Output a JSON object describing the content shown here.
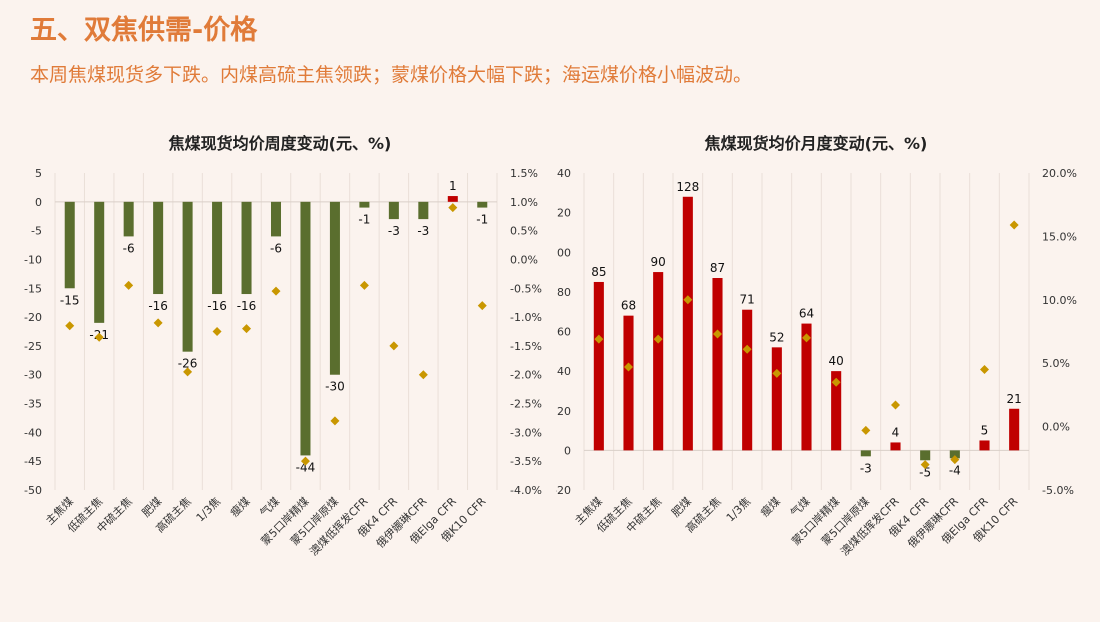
{
  "header": {
    "title": "五、双焦供需-价格",
    "subtitle": "本周焦煤现货多下跌。内煤高硫主焦领跌；蒙煤价格大幅下跌；海运煤价格小幅波动。"
  },
  "colors": {
    "accent": "#e07b39",
    "weekly_bar": "#5a6e2e",
    "monthly_bar": "#c00000",
    "marker": "#c99700",
    "background": "#fbf3ee"
  },
  "chart_data": [
    {
      "type": "bar",
      "title": "焦煤现货均价周度变动(元、%)",
      "categories": [
        "主焦煤",
        "低硫主焦",
        "中硫主焦",
        "肥煤",
        "高硫主焦",
        "1/3焦",
        "瘦煤",
        "气煤",
        "蒙5口岸精煤",
        "蒙5口岸原煤",
        "澳煤低挥发CFR",
        "俄K4 CFR",
        "俄伊娜琳CFR",
        "俄Elga CFR",
        "俄K10 CFR"
      ],
      "series": [
        {
          "axis": "left",
          "values": [
            -15,
            -21,
            -6,
            -16,
            -26,
            -16,
            -16,
            -6,
            -44,
            -30,
            -1,
            -3,
            -3,
            1,
            -1
          ],
          "labels": [
            "-15",
            "-21",
            "-6",
            "-16",
            "-26",
            "-16",
            "-16",
            "-6",
            "-44",
            "-30",
            "-1",
            "-3",
            "-3",
            "1",
            "-1"
          ]
        },
        {
          "axis": "right",
          "type": "scatter",
          "values": [
            -1.15,
            -1.35,
            -0.45,
            -1.1,
            -1.95,
            -1.25,
            -1.2,
            -0.55,
            -3.5,
            -2.8,
            -0.45,
            -1.5,
            -2.0,
            0.9,
            -0.8
          ]
        }
      ],
      "ylim": [
        -50,
        5
      ],
      "yticks": [
        "5",
        "0",
        "-5",
        "-10",
        "-15",
        "-20",
        "-25",
        "-30",
        "-35",
        "-40",
        "-45",
        "-50"
      ],
      "y2lim": [
        -4.0,
        1.5
      ],
      "y2ticks": [
        "1.5%",
        "1.0%",
        "0.5%",
        "0.0%",
        "-0.5%",
        "-1.0%",
        "-1.5%",
        "-2.0%",
        "-2.5%",
        "-3.0%",
        "-3.5%",
        "-4.0%"
      ],
      "grid": true
    },
    {
      "type": "bar",
      "title": "焦煤现货均价月度变动(元、%)",
      "categories": [
        "主焦煤",
        "低硫主焦",
        "中硫主焦",
        "肥煤",
        "高硫主焦",
        "1/3焦",
        "瘦煤",
        "气煤",
        "蒙5口岸精煤",
        "蒙5口岸原煤",
        "澳煤低挥发CFR",
        "俄K4 CFR",
        "俄伊娜琳CFR",
        "俄Elga CFR",
        "俄K10 CFR"
      ],
      "series": [
        {
          "axis": "left",
          "values": [
            85,
            68,
            90,
            128,
            87,
            71,
            52,
            64,
            40,
            -3,
            4,
            -5,
            -4,
            5,
            21
          ],
          "labels": [
            "85",
            "68",
            "90",
            "128",
            "87",
            "71",
            "52",
            "64",
            "40",
            "-3",
            "4",
            "-5",
            "-4",
            "5",
            "21"
          ]
        },
        {
          "axis": "right",
          "type": "scatter",
          "values": [
            6.9,
            4.7,
            6.9,
            10.0,
            7.3,
            6.1,
            4.2,
            7.0,
            3.5,
            -0.3,
            1.7,
            -3.0,
            -2.6,
            4.5,
            15.9
          ]
        }
      ],
      "ylim": [
        -20,
        140
      ],
      "yticks": [
        "140",
        "120",
        "100",
        "80",
        "60",
        "40",
        "20",
        "0",
        "-20"
      ],
      "y2lim": [
        -5.0,
        20.0
      ],
      "y2ticks": [
        "20.0%",
        "15.0%",
        "10.0%",
        "5.0%",
        "0.0%",
        "-5.0%"
      ],
      "grid": true
    }
  ]
}
